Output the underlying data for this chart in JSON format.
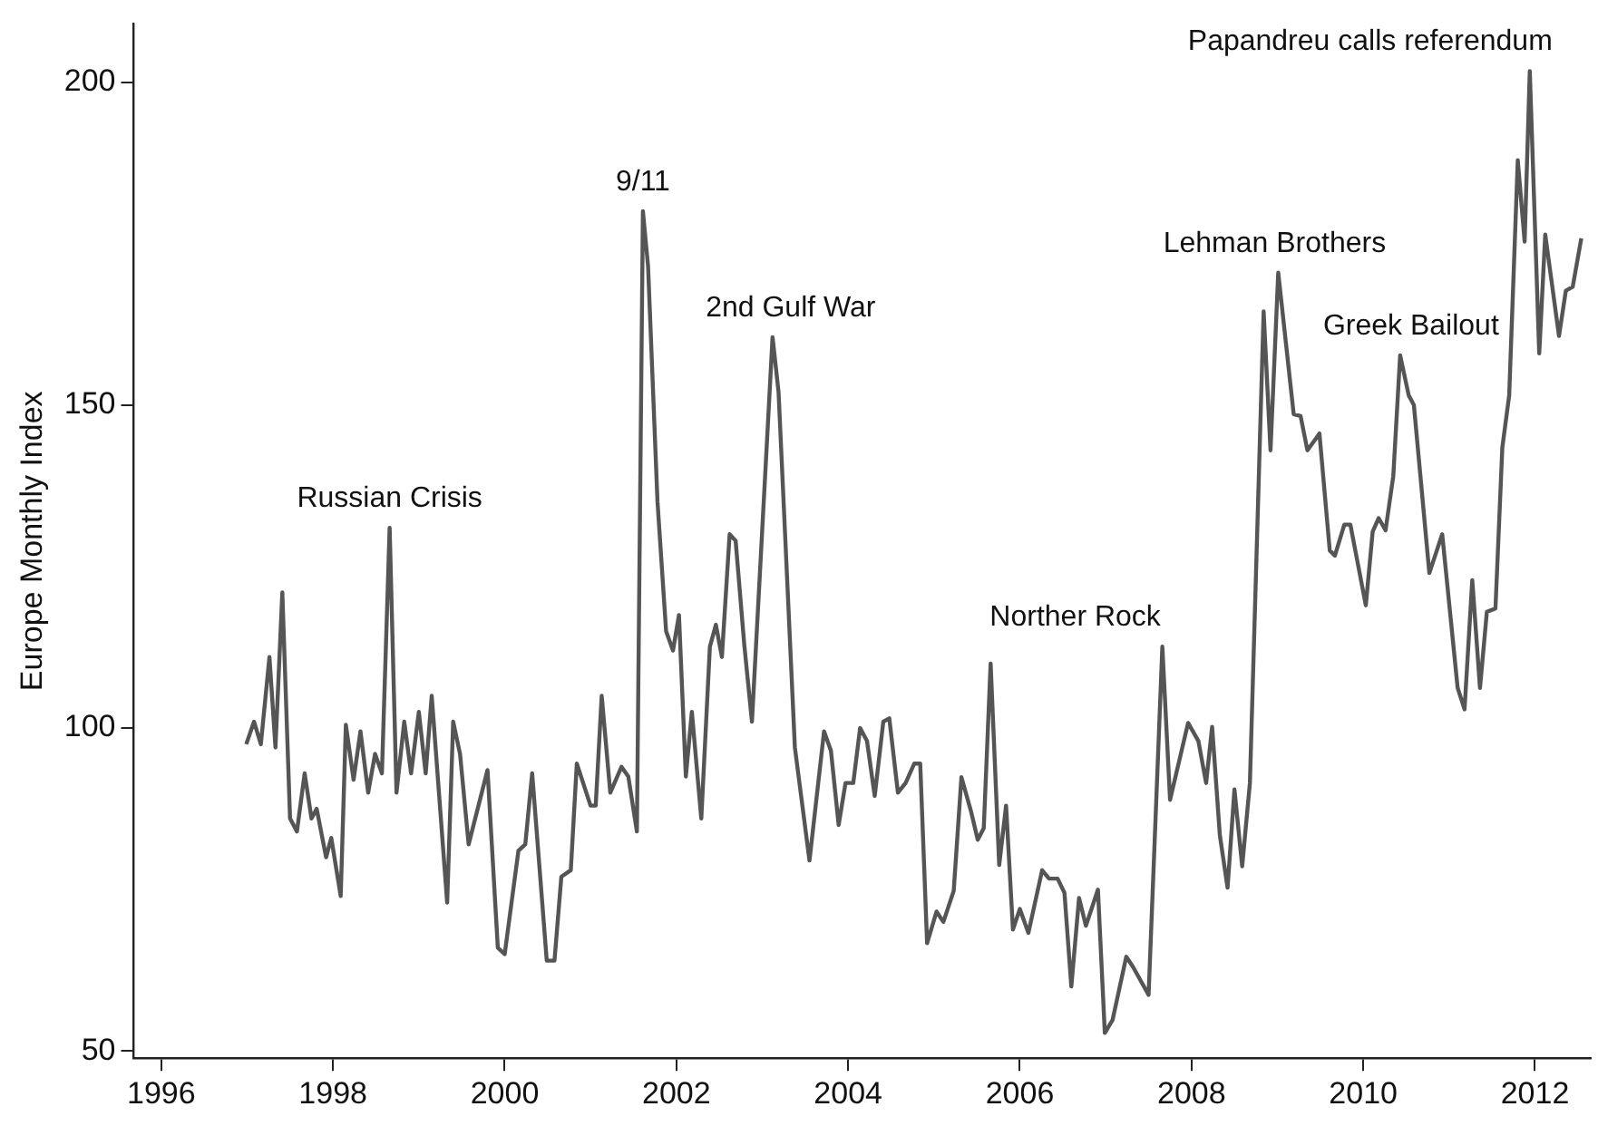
{
  "chart_data": {
    "type": "line",
    "ylabel": "Europe Monthly Index",
    "xlim": [
      1995.68,
      2012.65
    ],
    "xticks": [
      1996,
      1998,
      2000,
      2002,
      2004,
      2006,
      2008,
      2010,
      2012
    ],
    "ylim": [
      48.9,
      209
    ],
    "yticks": [
      50,
      100,
      150,
      200
    ],
    "grid": false,
    "legend": false,
    "marker": "none",
    "line_style": "solid",
    "series": [
      {
        "color": "#555555",
        "x": [
          1996.99,
          1997.08,
          1997.16,
          1997.26,
          1997.33,
          1997.41,
          1997.5,
          1997.58,
          1997.67,
          1997.75,
          1997.81,
          1997.92,
          1997.98,
          1998.09,
          1998.15,
          1998.24,
          1998.32,
          1998.41,
          1998.49,
          1998.57,
          1998.66,
          1998.74,
          1998.83,
          1998.91,
          1999.0,
          1999.08,
          1999.15,
          1999.33,
          1999.4,
          1999.48,
          1999.58,
          1999.8,
          1999.92,
          2000.0,
          2000.16,
          2000.24,
          2000.32,
          2000.49,
          2000.58,
          2000.66,
          2000.77,
          2000.84,
          2001.0,
          2001.06,
          2001.13,
          2001.23,
          2001.36,
          2001.44,
          2001.54,
          2001.61,
          2001.67,
          2001.78,
          2001.88,
          2001.96,
          2002.03,
          2002.11,
          2002.18,
          2002.29,
          2002.39,
          2002.46,
          2002.53,
          2002.62,
          2002.69,
          2002.79,
          2002.88,
          2003.12,
          2003.19,
          2003.38,
          2003.55,
          2003.72,
          2003.8,
          2003.89,
          2003.97,
          2004.06,
          2004.14,
          2004.22,
          2004.31,
          2004.41,
          2004.48,
          2004.58,
          2004.67,
          2004.77,
          2004.84,
          2004.92,
          2005.03,
          2005.11,
          2005.23,
          2005.32,
          2005.43,
          2005.51,
          2005.58,
          2005.66,
          2005.76,
          2005.84,
          2005.92,
          2006.0,
          2006.1,
          2006.26,
          2006.34,
          2006.44,
          2006.52,
          2006.6,
          2006.69,
          2006.77,
          2006.91,
          2006.99,
          2007.08,
          2007.24,
          2007.32,
          2007.5,
          2007.66,
          2007.75,
          2007.96,
          2008.08,
          2008.17,
          2008.24,
          2008.33,
          2008.42,
          2008.5,
          2008.59,
          2008.68,
          2008.84,
          2008.92,
          2009.01,
          2009.19,
          2009.27,
          2009.35,
          2009.49,
          2009.61,
          2009.67,
          2009.78,
          2009.85,
          2010.03,
          2010.11,
          2010.18,
          2010.26,
          2010.35,
          2010.43,
          2010.53,
          2010.59,
          2010.77,
          2010.92,
          2011.1,
          2011.18,
          2011.27,
          2011.36,
          2011.44,
          2011.54,
          2011.62,
          2011.7,
          2011.8,
          2011.88,
          2011.94,
          2012.05,
          2012.12,
          2012.28,
          2012.36,
          2012.44,
          2012.54
        ],
        "values": [
          97.5,
          101,
          97.5,
          111,
          97,
          121,
          86,
          84,
          93,
          86,
          87.5,
          80,
          83,
          74,
          100.5,
          92,
          99.5,
          90,
          96,
          93,
          131,
          90,
          101,
          93,
          102.5,
          93,
          105,
          73,
          101,
          96,
          82,
          93.5,
          66,
          65,
          81,
          82,
          93,
          64,
          64,
          77,
          78,
          94.5,
          88,
          88,
          105,
          90,
          94,
          92.5,
          84,
          180,
          171.5,
          135,
          115,
          112,
          117.5,
          92.5,
          102.5,
          86,
          112.6,
          116,
          111,
          130,
          129,
          113,
          101,
          160.5,
          152,
          97,
          79.5,
          99.5,
          96.5,
          85,
          91.5,
          91.5,
          100,
          98,
          89.5,
          101,
          101.5,
          90,
          91.5,
          94.5,
          94.5,
          66.7,
          71.6,
          70,
          74.8,
          92.4,
          87.2,
          82.7,
          84.5,
          110,
          78.8,
          88,
          68.8,
          72,
          68.3,
          78,
          76.7,
          76.7,
          74.5,
          60,
          73.7,
          69.4,
          75,
          52.8,
          54.8,
          64.6,
          63,
          58.7,
          112.6,
          88.9,
          100.8,
          98,
          91.5,
          100.2,
          83.4,
          75.3,
          90.5,
          78.6,
          91.5,
          164.5,
          143,
          170.5,
          148.6,
          148.3,
          143,
          145.6,
          127.5,
          126.7,
          131.5,
          131.5,
          119,
          130.4,
          132.5,
          130.6,
          139,
          157.7,
          151.5,
          150,
          124,
          130,
          106.2,
          102.9,
          122.9,
          106.2,
          118,
          118.5,
          143.4,
          151.5,
          187.9,
          175.3,
          201.7,
          158,
          176.4,
          160.7,
          167.7,
          168.3,
          175.8
        ]
      }
    ],
    "annotations": [
      {
        "text": "Russian Crisis",
        "x": 1998.66,
        "y": 131
      },
      {
        "text": "9/11",
        "x": 2001.61,
        "y": 180
      },
      {
        "text": "2nd Gulf War",
        "x": 2003.12,
        "y": 160.5
      },
      {
        "text": "Norther Rock",
        "x": 2007.66,
        "y": 112.6
      },
      {
        "text": "Lehman Brothers",
        "x": 2009.01,
        "y": 170.5
      },
      {
        "text": "Greek Bailout",
        "x": 2010.43,
        "y": 157.7
      },
      {
        "text": "Papandreu calls referendum",
        "x": 2011.94,
        "y": 201.7
      }
    ]
  }
}
